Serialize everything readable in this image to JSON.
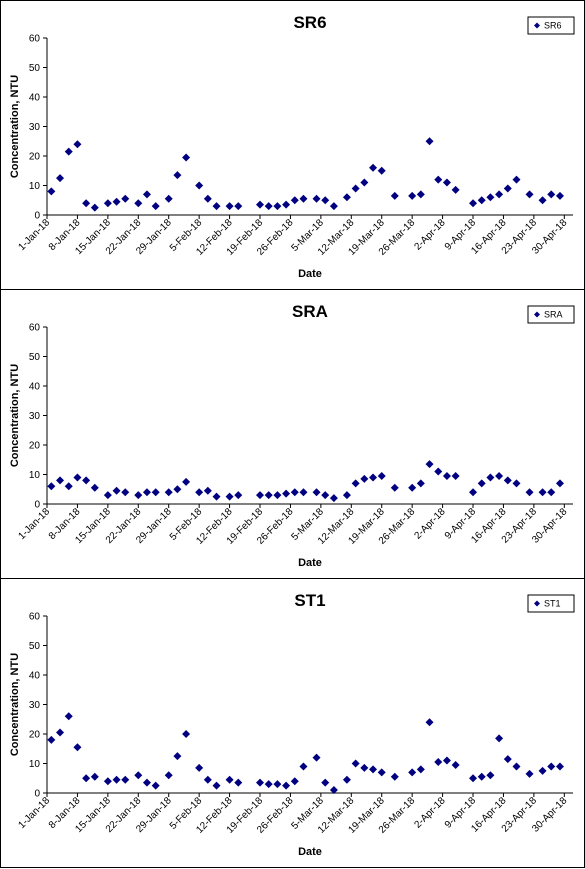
{
  "colors": {
    "marker": "#000080",
    "axis": "#000000",
    "background": "#ffffff"
  },
  "chart_data": [
    {
      "type": "scatter",
      "title": "SR6",
      "xlabel": "Date",
      "ylabel": "Concentration, NTU",
      "ylim": [
        0,
        60
      ],
      "yticks": [
        0,
        10,
        20,
        30,
        40,
        50,
        60
      ],
      "xlim": [
        "2018-01-01",
        "2018-05-02"
      ],
      "xtick_labels": [
        "1-Jan-18",
        "8-Jan-18",
        "15-Jan-18",
        "22-Jan-18",
        "29-Jan-18",
        "5-Feb-18",
        "12-Feb-18",
        "19-Feb-18",
        "26-Feb-18",
        "5-Mar-18",
        "12-Mar-18",
        "19-Mar-18",
        "26-Mar-18",
        "2-Apr-18",
        "9-Apr-18",
        "16-Apr-18",
        "23-Apr-18",
        "30-Apr-18"
      ],
      "legend": "top-right",
      "series": [
        {
          "name": "SR6",
          "x": [
            "2018-01-02",
            "2018-01-04",
            "2018-01-06",
            "2018-01-08",
            "2018-01-10",
            "2018-01-12",
            "2018-01-15",
            "2018-01-17",
            "2018-01-19",
            "2018-01-22",
            "2018-01-24",
            "2018-01-26",
            "2018-01-29",
            "2018-01-31",
            "2018-02-02",
            "2018-02-05",
            "2018-02-07",
            "2018-02-09",
            "2018-02-12",
            "2018-02-14",
            "2018-02-19",
            "2018-02-21",
            "2018-02-23",
            "2018-02-25",
            "2018-02-27",
            "2018-03-01",
            "2018-03-04",
            "2018-03-06",
            "2018-03-08",
            "2018-03-11",
            "2018-03-13",
            "2018-03-15",
            "2018-03-17",
            "2018-03-19",
            "2018-03-22",
            "2018-03-26",
            "2018-03-28",
            "2018-03-30",
            "2018-04-01",
            "2018-04-03",
            "2018-04-05",
            "2018-04-09",
            "2018-04-11",
            "2018-04-13",
            "2018-04-15",
            "2018-04-17",
            "2018-04-19",
            "2018-04-22",
            "2018-04-25",
            "2018-04-27",
            "2018-04-29"
          ],
          "y": [
            8,
            12.5,
            21.5,
            24,
            4,
            2.5,
            4,
            4.5,
            5.5,
            4,
            7,
            3,
            5.5,
            13.5,
            19.5,
            10,
            5.5,
            3,
            3,
            3,
            3.5,
            3,
            3,
            3.5,
            5,
            5.5,
            5.5,
            5,
            3,
            6,
            9,
            11,
            16,
            15,
            6.5,
            6.5,
            7,
            25,
            12,
            11,
            8.5,
            4,
            5,
            6,
            7,
            9,
            12,
            7,
            5,
            7,
            6.5
          ]
        }
      ]
    },
    {
      "type": "scatter",
      "title": "SRA",
      "xlabel": "Date",
      "ylabel": "Concentration, NTU",
      "ylim": [
        0,
        60
      ],
      "yticks": [
        0,
        10,
        20,
        30,
        40,
        50,
        60
      ],
      "xlim": [
        "2018-01-01",
        "2018-05-02"
      ],
      "xtick_labels": [
        "1-Jan-18",
        "8-Jan-18",
        "15-Jan-18",
        "22-Jan-18",
        "29-Jan-18",
        "5-Feb-18",
        "12-Feb-18",
        "19-Feb-18",
        "26-Feb-18",
        "5-Mar-18",
        "12-Mar-18",
        "19-Mar-18",
        "26-Mar-18",
        "2-Apr-18",
        "9-Apr-18",
        "16-Apr-18",
        "23-Apr-18",
        "30-Apr-18"
      ],
      "legend": "top-right",
      "series": [
        {
          "name": "SRA",
          "x": [
            "2018-01-02",
            "2018-01-04",
            "2018-01-06",
            "2018-01-08",
            "2018-01-10",
            "2018-01-12",
            "2018-01-15",
            "2018-01-17",
            "2018-01-19",
            "2018-01-22",
            "2018-01-24",
            "2018-01-26",
            "2018-01-29",
            "2018-01-31",
            "2018-02-02",
            "2018-02-05",
            "2018-02-07",
            "2018-02-09",
            "2018-02-12",
            "2018-02-14",
            "2018-02-19",
            "2018-02-21",
            "2018-02-23",
            "2018-02-25",
            "2018-02-27",
            "2018-03-01",
            "2018-03-04",
            "2018-03-06",
            "2018-03-08",
            "2018-03-11",
            "2018-03-13",
            "2018-03-15",
            "2018-03-17",
            "2018-03-19",
            "2018-03-22",
            "2018-03-26",
            "2018-03-28",
            "2018-03-30",
            "2018-04-01",
            "2018-04-03",
            "2018-04-05",
            "2018-04-09",
            "2018-04-11",
            "2018-04-13",
            "2018-04-15",
            "2018-04-17",
            "2018-04-19",
            "2018-04-22",
            "2018-04-25",
            "2018-04-27",
            "2018-04-29"
          ],
          "y": [
            6,
            8,
            6,
            9,
            8,
            5.5,
            3,
            4.5,
            4,
            3,
            4,
            4,
            4,
            5,
            7.5,
            4,
            4.5,
            2.5,
            2.5,
            3,
            3,
            3,
            3,
            3.5,
            4,
            4,
            4,
            3,
            2,
            3,
            7,
            8.5,
            9,
            9.5,
            5.5,
            5.5,
            7,
            13.5,
            11,
            9.5,
            9.5,
            4,
            7,
            9,
            9.5,
            8,
            7,
            4,
            4,
            4,
            7
          ]
        }
      ]
    },
    {
      "type": "scatter",
      "title": "ST1",
      "xlabel": "Date",
      "ylabel": "Concentration, NTU",
      "ylim": [
        0,
        60
      ],
      "yticks": [
        0,
        10,
        20,
        30,
        40,
        50,
        60
      ],
      "xlim": [
        "2018-01-01",
        "2018-05-02"
      ],
      "xtick_labels": [
        "1-Jan-18",
        "8-Jan-18",
        "15-Jan-18",
        "22-Jan-18",
        "29-Jan-18",
        "5-Feb-18",
        "12-Feb-18",
        "19-Feb-18",
        "26-Feb-18",
        "5-Mar-18",
        "12-Mar-18",
        "19-Mar-18",
        "26-Mar-18",
        "2-Apr-18",
        "9-Apr-18",
        "16-Apr-18",
        "23-Apr-18",
        "30-Apr-18"
      ],
      "legend": "top-right",
      "series": [
        {
          "name": "ST1",
          "x": [
            "2018-01-02",
            "2018-01-04",
            "2018-01-06",
            "2018-01-08",
            "2018-01-10",
            "2018-01-12",
            "2018-01-15",
            "2018-01-17",
            "2018-01-19",
            "2018-01-22",
            "2018-01-24",
            "2018-01-26",
            "2018-01-29",
            "2018-01-31",
            "2018-02-02",
            "2018-02-05",
            "2018-02-07",
            "2018-02-09",
            "2018-02-12",
            "2018-02-14",
            "2018-02-19",
            "2018-02-21",
            "2018-02-23",
            "2018-02-25",
            "2018-02-27",
            "2018-03-01",
            "2018-03-04",
            "2018-03-06",
            "2018-03-08",
            "2018-03-11",
            "2018-03-13",
            "2018-03-15",
            "2018-03-17",
            "2018-03-19",
            "2018-03-22",
            "2018-03-26",
            "2018-03-28",
            "2018-03-30",
            "2018-04-01",
            "2018-04-03",
            "2018-04-05",
            "2018-04-09",
            "2018-04-11",
            "2018-04-13",
            "2018-04-15",
            "2018-04-17",
            "2018-04-19",
            "2018-04-22",
            "2018-04-25",
            "2018-04-27",
            "2018-04-29"
          ],
          "y": [
            18,
            20.5,
            26,
            15.5,
            5,
            5.5,
            4,
            4.5,
            4.5,
            6,
            3.5,
            2.5,
            6,
            12.5,
            20,
            8.5,
            4.5,
            2.5,
            4.5,
            3.5,
            3.5,
            3,
            3,
            2.5,
            4,
            9,
            12,
            3.5,
            1,
            4.5,
            10,
            8.5,
            8,
            7,
            5.5,
            7,
            8,
            24,
            10.5,
            11,
            9.5,
            5,
            5.5,
            6,
            18.5,
            11.5,
            9,
            6.5,
            7.5,
            9,
            9
          ]
        }
      ]
    }
  ]
}
